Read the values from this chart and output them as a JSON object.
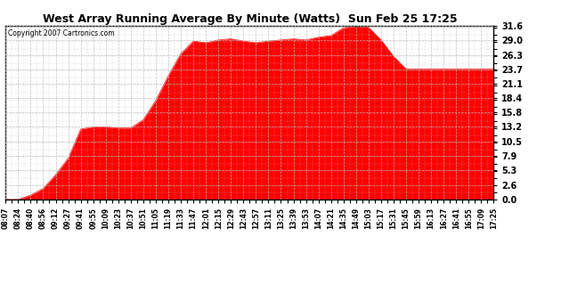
{
  "title": "West Array Running Average By Minute (Watts)  Sun Feb 25 17:25",
  "copyright": "Copyright 2007 Cartronics.com",
  "fill_color": "#FF0000",
  "line_color": "#FF0000",
  "background_color": "#FFFFFF",
  "grid_color": "#BBBBBB",
  "yticks": [
    0.0,
    2.6,
    5.3,
    7.9,
    10.5,
    13.2,
    15.8,
    18.4,
    21.1,
    23.7,
    26.3,
    29.0,
    31.6
  ],
  "ymax": 31.6,
  "ymin": 0.0,
  "xtick_labels": [
    "08:07",
    "08:24",
    "08:40",
    "08:56",
    "09:12",
    "09:27",
    "09:41",
    "09:55",
    "10:09",
    "10:23",
    "10:37",
    "10:51",
    "11:05",
    "11:19",
    "11:33",
    "11:47",
    "12:01",
    "12:15",
    "12:29",
    "12:43",
    "12:57",
    "13:11",
    "13:25",
    "13:39",
    "13:53",
    "14:07",
    "14:21",
    "14:35",
    "14:49",
    "15:03",
    "15:17",
    "15:31",
    "15:45",
    "15:59",
    "16:13",
    "16:27",
    "16:41",
    "16:55",
    "17:09",
    "17:25"
  ],
  "y_values": [
    0.0,
    0.0,
    0.8,
    2.0,
    4.5,
    7.5,
    12.8,
    13.2,
    13.2,
    13.0,
    13.0,
    14.5,
    18.0,
    22.5,
    26.5,
    28.8,
    28.5,
    29.0,
    29.2,
    28.8,
    28.5,
    28.8,
    29.0,
    29.2,
    29.0,
    29.5,
    29.8,
    31.2,
    31.5,
    31.3,
    29.0,
    26.0,
    23.7,
    23.7,
    23.7,
    23.7,
    23.7,
    23.7,
    23.7,
    23.7
  ]
}
